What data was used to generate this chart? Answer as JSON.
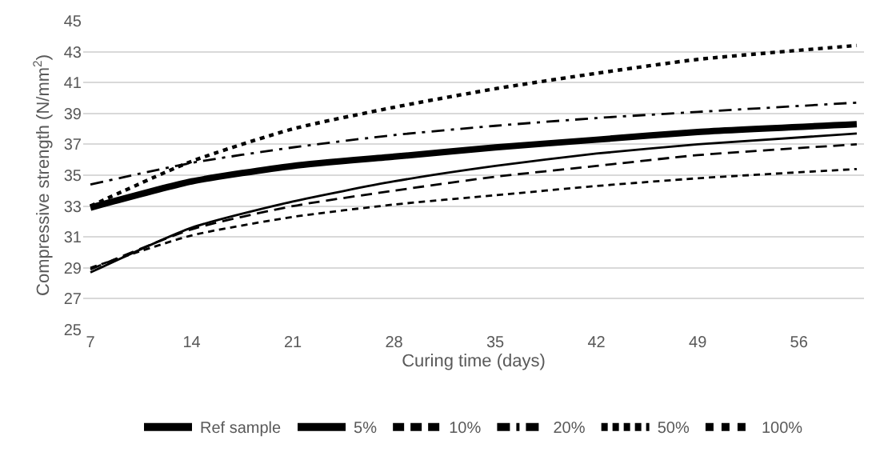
{
  "chart_data": {
    "type": "line",
    "xlabel": "Curing time (days)",
    "ylabel": "Compressive strength (N/mm$^{2}$)",
    "x": [
      7,
      14,
      21,
      28,
      35,
      42,
      49,
      60
    ],
    "xlim": [
      6.5,
      60.5
    ],
    "xticks": [
      7,
      14,
      21,
      28,
      35,
      42,
      49,
      56
    ],
    "ylim": [
      25,
      45
    ],
    "yticks": [
      25,
      27,
      29,
      31,
      33,
      35,
      37,
      39,
      41,
      43,
      45
    ],
    "grid": "y",
    "legend": "bottom",
    "marker": "none",
    "series": [
      {
        "name": "Ref sample",
        "color": "#000000",
        "line_style": "solid",
        "values": [
          32.9,
          34.6,
          35.6,
          36.2,
          36.8,
          37.3,
          37.8,
          38.3
        ]
      },
      {
        "name": "5%",
        "color": "#000000",
        "line_style": "solid",
        "values": [
          28.7,
          31.6,
          33.3,
          34.6,
          35.6,
          36.4,
          37.0,
          37.7
        ]
      },
      {
        "name": "10%",
        "color": "#000000",
        "line_style": "dashed",
        "values": [
          28.9,
          31.5,
          33.0,
          34.0,
          34.9,
          35.6,
          36.3,
          37.0
        ]
      },
      {
        "name": "20%",
        "color": "#000000",
        "line_style": "dashdot",
        "values": [
          34.4,
          35.8,
          36.8,
          37.6,
          38.2,
          38.7,
          39.1,
          39.7
        ]
      },
      {
        "name": "50%",
        "color": "#000000",
        "line_style": "shortdash",
        "values": [
          29.0,
          31.1,
          32.3,
          33.1,
          33.7,
          34.3,
          34.8,
          35.4
        ]
      },
      {
        "name": "100%",
        "color": "#000000",
        "line_style": "dotted",
        "values": [
          33.0,
          35.9,
          38.0,
          39.4,
          40.6,
          41.6,
          42.5,
          43.4
        ]
      }
    ]
  }
}
